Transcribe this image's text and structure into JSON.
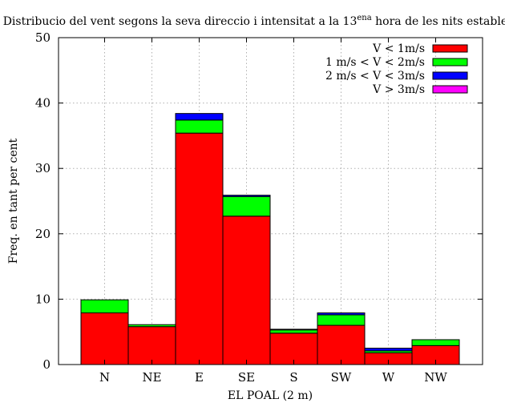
{
  "chart_data": {
    "type": "bar",
    "stacked": true,
    "title": {
      "pre": "Distribucio del vent segons la seva direccio i intensitat a la 13",
      "sup": "ena",
      "post": " hora de les nits estables"
    },
    "xlabel": "EL POAL (2 m)",
    "ylabel": "Freq. en tant per cent",
    "ylim": [
      0,
      50
    ],
    "yticks": [
      0,
      10,
      20,
      30,
      40,
      50
    ],
    "grid": true,
    "legend_position": "top-right",
    "categories": [
      "N",
      "NE",
      "E",
      "SE",
      "S",
      "SW",
      "W",
      "NW"
    ],
    "series": [
      {
        "name": "V < 1m/s",
        "color": "#ff0000",
        "values": [
          7.9,
          5.8,
          35.4,
          22.7,
          4.8,
          6.0,
          1.8,
          2.9
        ]
      },
      {
        "name": "1 m/s < V < 2m/s",
        "color": "#00ff00",
        "values": [
          2.0,
          0.3,
          2.0,
          3.0,
          0.5,
          1.6,
          0.3,
          0.9
        ]
      },
      {
        "name": "2 m/s < V < 3m/s",
        "color": "#0000ff",
        "values": [
          0.0,
          0.0,
          1.0,
          0.2,
          0.1,
          0.3,
          0.4,
          0.0
        ]
      },
      {
        "name": "V > 3m/s",
        "color": "#ff00ff",
        "values": [
          0.0,
          0.0,
          0.0,
          0.0,
          0.0,
          0.0,
          0.0,
          0.0
        ]
      }
    ]
  }
}
